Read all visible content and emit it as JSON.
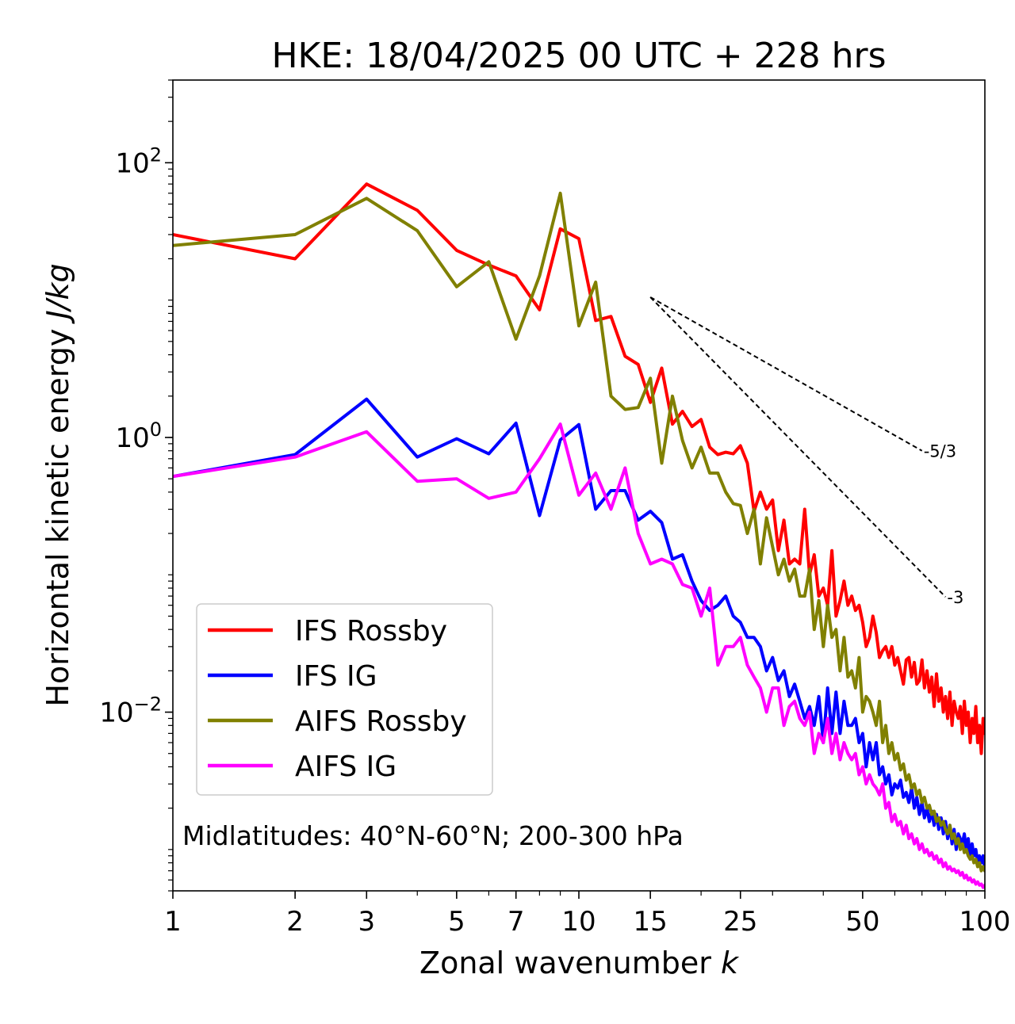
{
  "chart_data": {
    "type": "line",
    "title": "HKE: 18/04/2025 00 UTC + 228 hrs",
    "xlabel": "Zonal wavenumber k",
    "xlabel_text": "Zonal wavenumber",
    "xlabel_var": "k",
    "ylabel_text": "Horizontal kinetic energy",
    "ylabel_units": "J/kg",
    "xscale": "log",
    "yscale": "log",
    "xlim": [
      1,
      100
    ],
    "ylim": [
      0.0005,
      400
    ],
    "xticks": [
      {
        "value": 1,
        "label": "1"
      },
      {
        "value": 2,
        "label": "2"
      },
      {
        "value": 3,
        "label": "3"
      },
      {
        "value": 5,
        "label": "5"
      },
      {
        "value": 7,
        "label": "7"
      },
      {
        "value": 10,
        "label": "10"
      },
      {
        "value": 15,
        "label": "15"
      },
      {
        "value": 25,
        "label": "25"
      },
      {
        "value": 50,
        "label": "50"
      },
      {
        "value": 100,
        "label": "100"
      }
    ],
    "yticks": [
      {
        "value": 100,
        "base": "10",
        "exp": "2"
      },
      {
        "value": 1,
        "base": "10",
        "exp": "0"
      },
      {
        "value": 0.01,
        "base": "10",
        "exp": "−2"
      }
    ],
    "annotation": "Midlatitudes: 40°N-60°N; 200-300 hPa",
    "legend_position": "lower-left",
    "reference_lines": [
      {
        "label": "-5/3",
        "slope": -1.6667,
        "x": [
          15,
          70
        ],
        "y": [
          10.5,
          0.8
        ]
      },
      {
        "label": "-3",
        "slope": -3,
        "x": [
          15,
          80
        ],
        "y": [
          10.5,
          0.069
        ]
      }
    ],
    "series": [
      {
        "name": "IFS Rossby",
        "color": "#ff0000",
        "x": [
          1,
          2,
          3,
          4,
          5,
          6,
          7,
          8,
          9,
          10,
          11,
          12,
          13,
          14,
          15,
          16,
          17,
          18,
          19,
          20,
          21,
          22,
          23,
          24,
          25,
          26,
          27,
          28,
          29,
          30,
          31,
          32,
          33,
          34,
          35,
          36,
          37,
          38,
          39,
          40,
          41,
          42,
          43,
          44,
          45,
          46,
          47,
          48,
          49,
          50,
          51,
          52,
          53,
          54,
          55,
          56,
          57,
          58,
          59,
          60,
          61,
          62,
          63,
          64,
          65,
          66,
          67,
          68,
          69,
          70,
          71,
          72,
          73,
          74,
          75,
          76,
          77,
          78,
          79,
          80,
          81,
          82,
          83,
          84,
          85,
          86,
          87,
          88,
          89,
          90,
          91,
          92,
          93,
          94,
          95,
          96,
          97,
          98,
          99,
          100
        ],
        "y": [
          30,
          20,
          70,
          45,
          23,
          18,
          15,
          8.5,
          33,
          28,
          7.1,
          7.6,
          3.9,
          3.4,
          1.8,
          3.2,
          1.25,
          1.55,
          1.2,
          1.35,
          0.85,
          0.75,
          0.78,
          0.76,
          0.87,
          0.65,
          0.29,
          0.4,
          0.3,
          0.35,
          0.15,
          0.25,
          0.12,
          0.13,
          0.12,
          0.3,
          0.1,
          0.14,
          0.07,
          0.08,
          0.06,
          0.15,
          0.05,
          0.065,
          0.09,
          0.06,
          0.07,
          0.055,
          0.06,
          0.045,
          0.03,
          0.035,
          0.05,
          0.038,
          0.025,
          0.028,
          0.03,
          0.025,
          0.03,
          0.022,
          0.025,
          0.02,
          0.016,
          0.024,
          0.025,
          0.018,
          0.023,
          0.016,
          0.017,
          0.024,
          0.015,
          0.02,
          0.014,
          0.018,
          0.011,
          0.019,
          0.012,
          0.015,
          0.01,
          0.013,
          0.009,
          0.014,
          0.008,
          0.012,
          0.01,
          0.009,
          0.011,
          0.007,
          0.012,
          0.008,
          0.01,
          0.006,
          0.009,
          0.007,
          0.011,
          0.006,
          0.008,
          0.005,
          0.009,
          0.007
        ]
      },
      {
        "name": "IFS IG",
        "color": "#0000ff",
        "x": [
          1,
          2,
          3,
          4,
          5,
          6,
          7,
          8,
          9,
          10,
          11,
          12,
          13,
          14,
          15,
          16,
          17,
          18,
          19,
          20,
          21,
          22,
          23,
          24,
          25,
          26,
          27,
          28,
          29,
          30,
          31,
          32,
          33,
          34,
          35,
          36,
          37,
          38,
          39,
          40,
          41,
          42,
          43,
          44,
          45,
          46,
          47,
          48,
          49,
          50,
          51,
          52,
          53,
          54,
          55,
          56,
          57,
          58,
          59,
          60,
          61,
          62,
          63,
          64,
          65,
          66,
          67,
          68,
          69,
          70,
          71,
          72,
          73,
          74,
          75,
          76,
          77,
          78,
          79,
          80,
          81,
          82,
          83,
          84,
          85,
          86,
          87,
          88,
          89,
          90,
          91,
          92,
          93,
          94,
          95,
          96,
          97,
          98,
          99,
          100
        ],
        "y": [
          0.52,
          0.75,
          1.9,
          0.72,
          0.98,
          0.76,
          1.27,
          0.27,
          0.96,
          1.24,
          0.3,
          0.41,
          0.41,
          0.25,
          0.29,
          0.24,
          0.13,
          0.14,
          0.09,
          0.065,
          0.055,
          0.06,
          0.07,
          0.05,
          0.045,
          0.035,
          0.035,
          0.03,
          0.02,
          0.025,
          0.017,
          0.02,
          0.013,
          0.016,
          0.012,
          0.009,
          0.011,
          0.008,
          0.013,
          0.006,
          0.015,
          0.007,
          0.014,
          0.007,
          0.012,
          0.008,
          0.008,
          0.009,
          0.006,
          0.007,
          0.004,
          0.006,
          0.0045,
          0.006,
          0.0035,
          0.004,
          0.003,
          0.0035,
          0.0025,
          0.003,
          0.0028,
          0.0032,
          0.0024,
          0.0026,
          0.0022,
          0.0028,
          0.002,
          0.0024,
          0.0018,
          0.0022,
          0.0017,
          0.002,
          0.0016,
          0.0019,
          0.0015,
          0.0018,
          0.0014,
          0.0017,
          0.0013,
          0.0016,
          0.0012,
          0.0015,
          0.0011,
          0.0014,
          0.001,
          0.0013,
          0.0012,
          0.0011,
          0.0013,
          0.001,
          0.0012,
          0.0009,
          0.0011,
          0.0009,
          0.001,
          0.0008,
          0.0009,
          0.0008,
          0.0009,
          0.0007
        ]
      },
      {
        "name": "AIFS Rossby",
        "color": "#808000",
        "x": [
          1,
          2,
          3,
          4,
          5,
          6,
          7,
          8,
          9,
          10,
          11,
          12,
          13,
          14,
          15,
          16,
          17,
          18,
          19,
          20,
          21,
          22,
          23,
          24,
          25,
          26,
          27,
          28,
          29,
          30,
          31,
          32,
          33,
          34,
          35,
          36,
          37,
          38,
          39,
          40,
          41,
          42,
          43,
          44,
          45,
          46,
          47,
          48,
          49,
          50,
          51,
          52,
          53,
          54,
          55,
          56,
          57,
          58,
          59,
          60,
          61,
          62,
          63,
          64,
          65,
          66,
          67,
          68,
          69,
          70,
          71,
          72,
          73,
          74,
          75,
          76,
          77,
          78,
          79,
          80,
          81,
          82,
          83,
          84,
          85,
          86,
          87,
          88,
          89,
          90,
          91,
          92,
          93,
          94,
          95,
          96,
          97,
          98,
          99,
          100
        ],
        "y": [
          25,
          30,
          55,
          32,
          12.5,
          19,
          5.2,
          15,
          60,
          6.5,
          13.5,
          2.0,
          1.6,
          1.65,
          2.7,
          0.65,
          2.0,
          0.95,
          0.6,
          0.85,
          0.55,
          0.55,
          0.4,
          0.33,
          0.32,
          0.2,
          0.3,
          0.12,
          0.26,
          0.16,
          0.1,
          0.13,
          0.09,
          0.11,
          0.07,
          0.07,
          0.11,
          0.04,
          0.065,
          0.03,
          0.06,
          0.035,
          0.04,
          0.02,
          0.035,
          0.018,
          0.02,
          0.015,
          0.025,
          0.01,
          0.013,
          0.012,
          0.01,
          0.008,
          0.012,
          0.006,
          0.008,
          0.005,
          0.006,
          0.0045,
          0.005,
          0.0038,
          0.0042,
          0.0032,
          0.0035,
          0.0028,
          0.003,
          0.0025,
          0.0027,
          0.0022,
          0.0024,
          0.002,
          0.0021,
          0.0018,
          0.0019,
          0.0016,
          0.0017,
          0.0015,
          0.0016,
          0.0014,
          0.0013,
          0.0015,
          0.0012,
          0.0013,
          0.0011,
          0.0012,
          0.001,
          0.0011,
          0.00095,
          0.001,
          0.0009,
          0.00085,
          0.0009,
          0.0008,
          0.00085,
          0.00075,
          0.0008,
          0.0007,
          0.00075,
          0.0007
        ]
      },
      {
        "name": "AIFS IG",
        "color": "#ff00ff",
        "x": [
          1,
          2,
          3,
          4,
          5,
          6,
          7,
          8,
          9,
          10,
          11,
          12,
          13,
          14,
          15,
          16,
          17,
          18,
          19,
          20,
          21,
          22,
          23,
          24,
          25,
          26,
          27,
          28,
          29,
          30,
          31,
          32,
          33,
          34,
          35,
          36,
          37,
          38,
          39,
          40,
          41,
          42,
          43,
          44,
          45,
          46,
          47,
          48,
          49,
          50,
          51,
          52,
          53,
          54,
          55,
          56,
          57,
          58,
          59,
          60,
          61,
          62,
          63,
          64,
          65,
          66,
          67,
          68,
          69,
          70,
          71,
          72,
          73,
          74,
          75,
          76,
          77,
          78,
          79,
          80,
          81,
          82,
          83,
          84,
          85,
          86,
          87,
          88,
          89,
          90,
          91,
          92,
          93,
          94,
          95,
          96,
          97,
          98,
          99,
          100
        ],
        "y": [
          0.52,
          0.72,
          1.1,
          0.48,
          0.5,
          0.36,
          0.4,
          0.7,
          1.25,
          0.38,
          0.55,
          0.3,
          0.6,
          0.2,
          0.12,
          0.13,
          0.12,
          0.085,
          0.08,
          0.05,
          0.08,
          0.022,
          0.03,
          0.03,
          0.035,
          0.022,
          0.018,
          0.015,
          0.01,
          0.015,
          0.015,
          0.008,
          0.011,
          0.012,
          0.009,
          0.008,
          0.01,
          0.005,
          0.007,
          0.006,
          0.009,
          0.005,
          0.007,
          0.0045,
          0.006,
          0.005,
          0.0045,
          0.005,
          0.0035,
          0.004,
          0.003,
          0.0035,
          0.003,
          0.0028,
          0.0025,
          0.003,
          0.002,
          0.0022,
          0.0016,
          0.0018,
          0.0015,
          0.0016,
          0.0013,
          0.0015,
          0.0012,
          0.0013,
          0.0011,
          0.0012,
          0.001,
          0.0011,
          0.00095,
          0.001,
          0.0009,
          0.00095,
          0.00085,
          0.0009,
          0.0008,
          0.00085,
          0.00075,
          0.0008,
          0.00072,
          0.00075,
          0.0007,
          0.00072,
          0.00068,
          0.0007,
          0.00065,
          0.00068,
          0.00062,
          0.00065,
          0.0006,
          0.00062,
          0.00058,
          0.0006,
          0.00056,
          0.00058,
          0.00055,
          0.00056,
          0.00053,
          0.00055
        ]
      }
    ]
  }
}
